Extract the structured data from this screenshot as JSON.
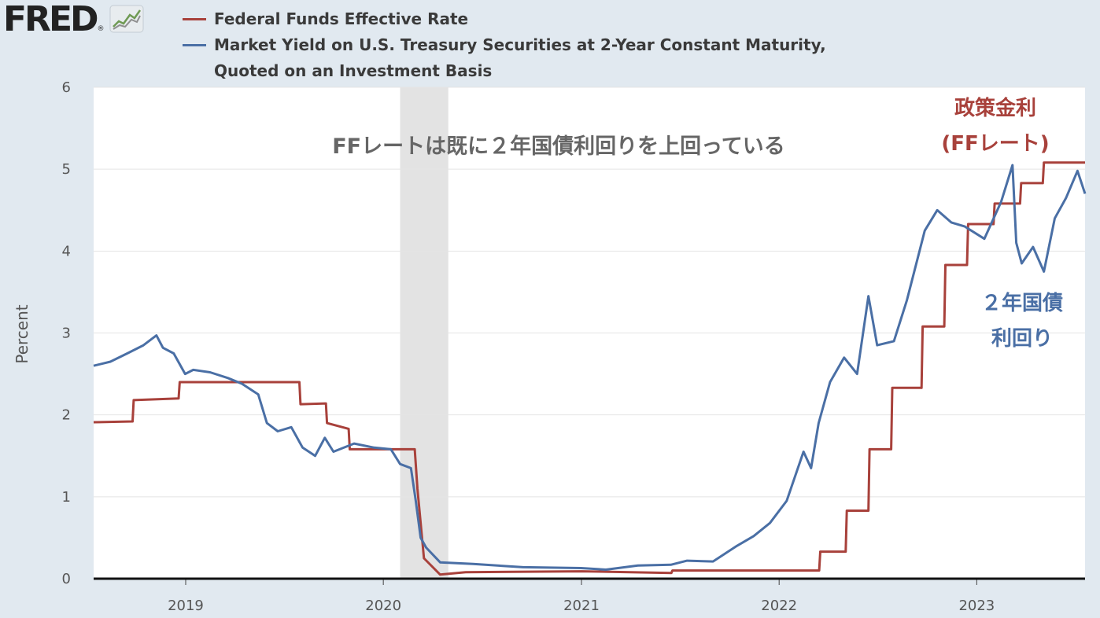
{
  "logo": {
    "text": "FRED",
    "reg": "®"
  },
  "colors": {
    "ff": "#a8413b",
    "t2y": "#4a6fa5",
    "recession": "#e3e3e3"
  },
  "legend": [
    {
      "lines": [
        "Federal Funds Effective Rate"
      ]
    },
    {
      "lines": [
        "Market Yield on U.S. Treasury Securities at 2-Year Constant Maturity,",
        "Quoted on an Investment Basis"
      ]
    }
  ],
  "annotations": {
    "main": "FFレートは既に２年国債利回りを上回っている",
    "ff_line1": "政策金利",
    "ff_line2": "(FFレート)",
    "t2y_line1": "２年国債",
    "t2y_line2": "利回り"
  },
  "chart_data": {
    "type": "line",
    "ylabel": "Percent",
    "ylim": [
      0,
      6
    ],
    "yticks": [
      "0",
      "1",
      "2",
      "3",
      "4",
      "5",
      "6"
    ],
    "xlim": [
      "2018-07-15",
      "2023-07-20"
    ],
    "xticks": [
      "2019",
      "2020",
      "2021",
      "2022",
      "2023"
    ],
    "recession": [
      "2020-02-01",
      "2020-04-30"
    ],
    "series": [
      {
        "name": "Federal Funds Effective Rate",
        "points": [
          [
            "2018-07-15",
            1.91
          ],
          [
            "2018-09-25",
            1.92
          ],
          [
            "2018-09-27",
            2.18
          ],
          [
            "2018-12-19",
            2.2
          ],
          [
            "2018-12-21",
            2.4
          ],
          [
            "2019-07-30",
            2.4
          ],
          [
            "2019-08-01",
            2.13
          ],
          [
            "2019-09-17",
            2.14
          ],
          [
            "2019-09-19",
            1.9
          ],
          [
            "2019-10-29",
            1.83
          ],
          [
            "2019-10-31",
            1.58
          ],
          [
            "2020-01-31",
            1.58
          ],
          [
            "2020-02-28",
            1.58
          ],
          [
            "2020-03-04",
            1.1
          ],
          [
            "2020-03-16",
            0.25
          ],
          [
            "2020-04-15",
            0.05
          ],
          [
            "2020-06-01",
            0.08
          ],
          [
            "2021-01-01",
            0.09
          ],
          [
            "2021-06-16",
            0.07
          ],
          [
            "2021-06-18",
            0.1
          ],
          [
            "2022-03-16",
            0.1
          ],
          [
            "2022-03-18",
            0.33
          ],
          [
            "2022-05-04",
            0.33
          ],
          [
            "2022-05-06",
            0.83
          ],
          [
            "2022-06-15",
            0.83
          ],
          [
            "2022-06-17",
            1.58
          ],
          [
            "2022-07-27",
            1.58
          ],
          [
            "2022-07-29",
            2.33
          ],
          [
            "2022-09-21",
            2.33
          ],
          [
            "2022-09-23",
            3.08
          ],
          [
            "2022-11-02",
            3.08
          ],
          [
            "2022-11-04",
            3.83
          ],
          [
            "2022-12-14",
            3.83
          ],
          [
            "2022-12-16",
            4.33
          ],
          [
            "2023-02-01",
            4.33
          ],
          [
            "2023-02-03",
            4.58
          ],
          [
            "2023-03-22",
            4.58
          ],
          [
            "2023-03-24",
            4.83
          ],
          [
            "2023-05-03",
            4.83
          ],
          [
            "2023-05-05",
            5.08
          ],
          [
            "2023-07-20",
            5.08
          ]
        ]
      },
      {
        "name": "Market Yield on U.S. Treasury Securities at 2-Year Constant Maturity, Quoted on an Investment Basis",
        "points": [
          [
            "2018-07-15",
            2.6
          ],
          [
            "2018-08-15",
            2.65
          ],
          [
            "2018-09-15",
            2.75
          ],
          [
            "2018-10-15",
            2.85
          ],
          [
            "2018-11-08",
            2.97
          ],
          [
            "2018-11-20",
            2.82
          ],
          [
            "2018-12-10",
            2.75
          ],
          [
            "2018-12-31",
            2.5
          ],
          [
            "2019-01-15",
            2.55
          ],
          [
            "2019-02-15",
            2.52
          ],
          [
            "2019-03-20",
            2.45
          ],
          [
            "2019-04-15",
            2.38
          ],
          [
            "2019-05-15",
            2.25
          ],
          [
            "2019-05-31",
            1.9
          ],
          [
            "2019-06-20",
            1.8
          ],
          [
            "2019-07-15",
            1.85
          ],
          [
            "2019-08-05",
            1.6
          ],
          [
            "2019-08-28",
            1.5
          ],
          [
            "2019-09-15",
            1.72
          ],
          [
            "2019-10-01",
            1.55
          ],
          [
            "2019-11-08",
            1.65
          ],
          [
            "2019-12-15",
            1.6
          ],
          [
            "2020-01-15",
            1.58
          ],
          [
            "2020-02-01",
            1.4
          ],
          [
            "2020-02-21",
            1.35
          ],
          [
            "2020-03-01",
            0.95
          ],
          [
            "2020-03-10",
            0.5
          ],
          [
            "2020-03-20",
            0.38
          ],
          [
            "2020-04-15",
            0.2
          ],
          [
            "2020-06-15",
            0.18
          ],
          [
            "2020-09-15",
            0.14
          ],
          [
            "2020-12-31",
            0.13
          ],
          [
            "2021-02-15",
            0.11
          ],
          [
            "2021-04-15",
            0.16
          ],
          [
            "2021-06-15",
            0.17
          ],
          [
            "2021-07-15",
            0.22
          ],
          [
            "2021-09-01",
            0.21
          ],
          [
            "2021-10-15",
            0.4
          ],
          [
            "2021-11-15",
            0.52
          ],
          [
            "2021-12-15",
            0.68
          ],
          [
            "2022-01-15",
            0.95
          ],
          [
            "2022-02-15",
            1.55
          ],
          [
            "2022-03-01",
            1.35
          ],
          [
            "2022-03-15",
            1.9
          ],
          [
            "2022-04-05",
            2.4
          ],
          [
            "2022-05-01",
            2.7
          ],
          [
            "2022-05-25",
            2.5
          ],
          [
            "2022-06-15",
            3.45
          ],
          [
            "2022-07-01",
            2.85
          ],
          [
            "2022-08-01",
            2.9
          ],
          [
            "2022-08-25",
            3.4
          ],
          [
            "2022-09-27",
            4.25
          ],
          [
            "2022-10-20",
            4.5
          ],
          [
            "2022-11-15",
            4.35
          ],
          [
            "2022-12-10",
            4.3
          ],
          [
            "2023-01-15",
            4.15
          ],
          [
            "2023-02-15",
            4.6
          ],
          [
            "2023-03-08",
            5.05
          ],
          [
            "2023-03-15",
            4.1
          ],
          [
            "2023-03-25",
            3.85
          ],
          [
            "2023-04-15",
            4.05
          ],
          [
            "2023-05-05",
            3.75
          ],
          [
            "2023-05-25",
            4.4
          ],
          [
            "2023-06-15",
            4.65
          ],
          [
            "2023-07-06",
            4.98
          ],
          [
            "2023-07-20",
            4.7
          ]
        ]
      }
    ]
  }
}
